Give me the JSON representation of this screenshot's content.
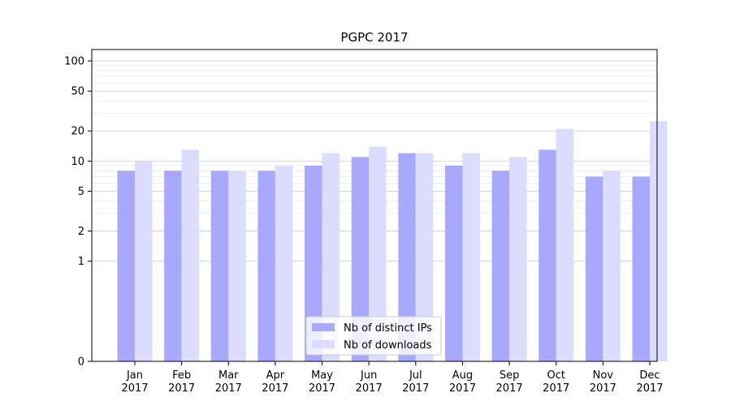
{
  "chart_data": {
    "type": "bar",
    "title": "PGPC 2017",
    "xlabel": "",
    "ylabel": "",
    "yscale": "symlog",
    "ylim": [
      0,
      130
    ],
    "yticks": [
      0,
      1,
      2,
      5,
      10,
      20,
      50,
      100
    ],
    "grid": "y",
    "legend_position": "lower-center",
    "categories": [
      [
        "Jan",
        "2017"
      ],
      [
        "Feb",
        "2017"
      ],
      [
        "Mar",
        "2017"
      ],
      [
        "Apr",
        "2017"
      ],
      [
        "May",
        "2017"
      ],
      [
        "Jun",
        "2017"
      ],
      [
        "Jul",
        "2017"
      ],
      [
        "Aug",
        "2017"
      ],
      [
        "Sep",
        "2017"
      ],
      [
        "Oct",
        "2017"
      ],
      [
        "Nov",
        "2017"
      ],
      [
        "Dec",
        "2017"
      ]
    ],
    "series": [
      {
        "name": "Nb of distinct IPs",
        "color": "#a8a8ff",
        "values": [
          8,
          8,
          8,
          8,
          9,
          11,
          12,
          9,
          8,
          13,
          7,
          7
        ]
      },
      {
        "name": "Nb of downloads",
        "color": "#dcdcff",
        "values": [
          10,
          13,
          8,
          9,
          12,
          14,
          12,
          12,
          11,
          21,
          8,
          25
        ]
      }
    ]
  }
}
